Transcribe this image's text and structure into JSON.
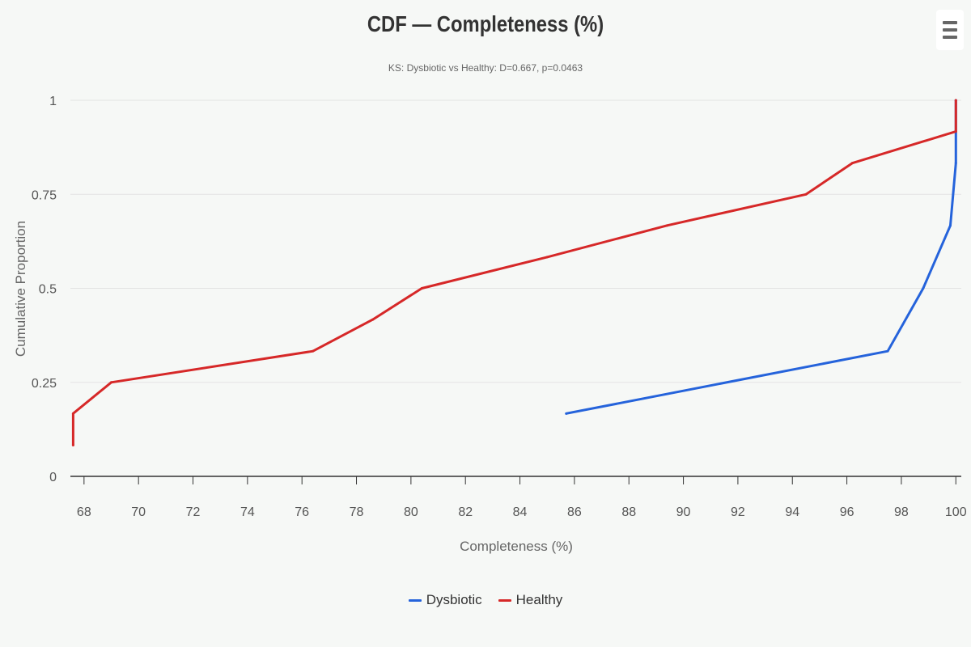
{
  "chart_data": {
    "type": "line",
    "title": "CDF — Completeness (%)",
    "subtitle": "KS: Dysbiotic vs Healthy: D=0.667, p=0.0463",
    "xlabel": "Completeness (%)",
    "ylabel": "Cumulative Proportion",
    "xlim": [
      67.5,
      100.2
    ],
    "ylim": [
      0,
      1
    ],
    "x_ticks": [
      "68",
      "70",
      "72",
      "74",
      "76",
      "78",
      "80",
      "82",
      "84",
      "86",
      "88",
      "90",
      "92",
      "94",
      "96",
      "98",
      "100"
    ],
    "y_ticks": [
      "0",
      "0.25",
      "0.5",
      "0.75",
      "1"
    ],
    "grid": true,
    "legend_position": "bottom-center",
    "series": [
      {
        "name": "Dysbiotic",
        "color": "#2563db",
        "points": [
          [
            85.7,
            0.167
          ],
          [
            97.5,
            0.333
          ],
          [
            98.8,
            0.5
          ],
          [
            99.8,
            0.667
          ],
          [
            100.0,
            0.833
          ],
          [
            100.0,
            1.0
          ]
        ]
      },
      {
        "name": "Healthy",
        "color": "#d62828",
        "points": [
          [
            67.6,
            0.083
          ],
          [
            67.6,
            0.167
          ],
          [
            69.0,
            0.25
          ],
          [
            76.4,
            0.333
          ],
          [
            78.6,
            0.417
          ],
          [
            80.4,
            0.5
          ],
          [
            85.0,
            0.583
          ],
          [
            89.4,
            0.667
          ],
          [
            94.5,
            0.75
          ],
          [
            96.2,
            0.833
          ],
          [
            100.0,
            0.917
          ],
          [
            100.0,
            1.0
          ]
        ]
      }
    ]
  },
  "menu": {
    "icon": "hamburger-menu-icon"
  }
}
